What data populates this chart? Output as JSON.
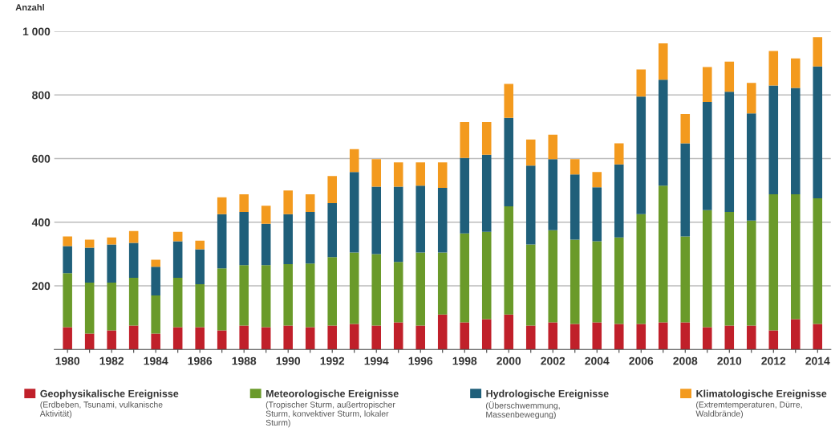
{
  "chart_data": {
    "type": "bar",
    "stacked": true,
    "ylabel": "Anzahl",
    "categories": [
      "1980",
      null,
      "1982",
      null,
      "1984",
      null,
      "1986",
      null,
      "1988",
      null,
      "1990",
      null,
      "1992",
      null,
      "1994",
      null,
      "1996",
      null,
      "1998",
      null,
      "2000",
      null,
      "2002",
      null,
      "2004",
      null,
      "2006",
      null,
      "2008",
      null,
      "2010",
      null,
      "2012",
      null,
      "2014"
    ],
    "series": [
      {
        "name": "Geophysikalische Ereignisse",
        "color": "#c0202a",
        "values": [
          70,
          50,
          60,
          75,
          50,
          70,
          70,
          60,
          75,
          70,
          75,
          70,
          75,
          80,
          75,
          85,
          75,
          110,
          85,
          95,
          110,
          75,
          85,
          80,
          85,
          80,
          80,
          85,
          85,
          70,
          75,
          75,
          60,
          95,
          80
        ]
      },
      {
        "name": "Meteorologische Ereignisse",
        "color": "#6a9a2a",
        "values": [
          170,
          160,
          150,
          150,
          120,
          155,
          135,
          195,
          190,
          195,
          193,
          200,
          215,
          225,
          225,
          190,
          230,
          195,
          280,
          275,
          340,
          255,
          290,
          265,
          255,
          272,
          345,
          430,
          270,
          368,
          357,
          330,
          428,
          393,
          395
        ]
      },
      {
        "name": "Hydrologische Ereignisse",
        "color": "#1f5f7a",
        "values": [
          85,
          110,
          120,
          110,
          90,
          115,
          110,
          170,
          167,
          130,
          157,
          162,
          170,
          253,
          212,
          237,
          210,
          203,
          237,
          242,
          278,
          248,
          223,
          205,
          170,
          230,
          370,
          333,
          293,
          340,
          378,
          337,
          342,
          334,
          415
        ]
      },
      {
        "name": "Klimatologische Ereignisse",
        "color": "#f39a1e",
        "values": [
          30,
          25,
          22,
          37,
          22,
          30,
          27,
          53,
          56,
          57,
          75,
          56,
          85,
          72,
          86,
          76,
          73,
          80,
          113,
          103,
          107,
          82,
          77,
          48,
          48,
          66,
          85,
          114,
          92,
          110,
          95,
          96,
          108,
          93,
          92
        ]
      }
    ],
    "ylim": [
      0,
      1000
    ],
    "yticks": [
      200,
      400,
      600,
      800,
      {
        "value": 1000,
        "label": "1 000"
      }
    ],
    "grid": "y",
    "legend": "bottom",
    "annotations": [
      "(Erdbeben, Tsunami, vulkanische\nAktivität)",
      "(Tropischer Sturm, außertropischer\nSturm, konvektiver Sturm, lokaler\nSturm)",
      "(Überschwemmung,\nMassenbewegung)",
      "(Extremtemperaturen, Dürre,\nWaldbrände)"
    ]
  }
}
